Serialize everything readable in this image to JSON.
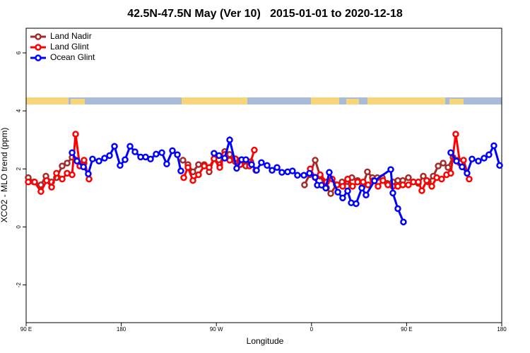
{
  "chart_data": {
    "type": "line",
    "title": "42.5N-47.5N May (Ver 10)   2015-01-01 to 2020-12-18",
    "x_label": "Longitude",
    "y_label": "XCO2 - MLO trend (ppm)",
    "xlim": [
      90,
      540
    ],
    "ylim": [
      -3.3,
      6.85
    ],
    "xticks": [
      {
        "value": 90,
        "label": "90 E"
      },
      180,
      {
        "value": 270,
        "label": "90 W"
      },
      {
        "value": 360,
        "label": "0"
      },
      {
        "value": 450,
        "label": "90 E"
      },
      {
        "value": 540,
        "label": "180"
      }
    ],
    "yticks": [
      -2,
      0,
      2,
      4,
      6
    ],
    "legend": "top-left",
    "series": [
      {
        "name": "Land Nadir",
        "color": "#a52a2a",
        "x": [
          92.0,
          97.4,
          104.0,
          108.7,
          114.1,
          118.7,
          124.1,
          128.8,
          133.5,
          137.5,
          144.8,
          190,
          238.4,
          243.1,
          247.8,
          253.1,
          258.5,
          263.2,
          267.8,
          273.2,
          277.9,
          282.6,
          287.9,
          292.6,
          297.9,
          302.6,
          307.3,
          330,
          353.4,
          358.1,
          363.5,
          368.2,
          374.2,
          378.2,
          383.5,
          388.9,
          393.5,
          398.2,
          403.6,
          408.3,
          412.9,
          417.6,
          422.3,
          427,
          431.7,
          437,
          441.7,
          446.4,
          451.7,
          456.4,
          461.1,
          465.8,
          470.5,
          475.2,
          479.9,
          484.6,
          489.2,
          493.9,
          498.6,
          503.3
        ],
        "values": [
          1.7,
          1.55,
          1.45,
          1.75,
          1.55,
          1.7,
          2.1,
          2.2,
          2.4,
          2.3,
          2.2,
          null,
          2.3,
          2.15,
          1.9,
          2.15,
          2.15,
          1.9,
          2.35,
          2.15,
          2.6,
          2.5,
          2.25,
          2.3,
          2.1,
          2.25,
          1.95,
          null,
          1.45,
          1.8,
          2.3,
          1.75,
          1.35,
          1.15,
          1.45,
          1.55,
          1.4,
          1.7,
          1.6,
          1.4,
          1.9,
          1.7,
          1.7,
          1.7,
          1.5,
          1.55,
          1.6,
          1.6,
          1.7,
          1.55,
          1.5,
          1.75,
          1.55,
          1.75,
          2.1,
          2.2,
          2.05,
          2.4,
          2.3,
          2.1
        ]
      },
      {
        "name": "Land Glint",
        "color": "#ff0000",
        "x": [
          92.0,
          98.0,
          104.0,
          109.4,
          114.1,
          118.7,
          124.1,
          128.8,
          133.5,
          136.8,
          140.8,
          144.8,
          149.5,
          195,
          239.1,
          243.1,
          247.8,
          253.1,
          258.5,
          263.2,
          267.8,
          273.2,
          277.9,
          282.6,
          287.9,
          292.6,
          297.9,
          301.3,
          305.9,
          330,
          358.8,
          363.5,
          368.2,
          374.2,
          379.6,
          384.2,
          389.5,
          394.2,
          398.9,
          403.6,
          408.9,
          413.6,
          418.3,
          423,
          427.6,
          432.3,
          437,
          441.7,
          446.4,
          451.7,
          456.4,
          461.1,
          464.4,
          469.1,
          473.8,
          478.5,
          483.1,
          487.8,
          491.8,
          496.5,
          500.5,
          503.9,
          509.2
        ],
        "values": [
          1.55,
          1.55,
          1.22,
          1.6,
          1.37,
          1.85,
          1.65,
          1.85,
          1.8,
          3.2,
          2.1,
          2.3,
          1.65,
          null,
          1.7,
          2.05,
          1.6,
          1.8,
          2.1,
          2.05,
          2.35,
          2.05,
          2.5,
          2.3,
          2.35,
          2.15,
          2.3,
          2.1,
          2.65,
          null,
          2.0,
          1.7,
          1.8,
          1.55,
          1.65,
          1.45,
          1.4,
          1.65,
          1.4,
          1.55,
          1.55,
          1.45,
          1.6,
          1.4,
          1.6,
          1.45,
          1.4,
          1.4,
          1.45,
          1.45,
          1.55,
          1.55,
          1.25,
          1.6,
          1.4,
          1.7,
          1.65,
          1.8,
          1.85,
          3.2,
          2.2,
          2.3,
          1.65
        ]
      },
      {
        "name": "Ocean Glint",
        "color": "#0000ff",
        "x": [
          133.5,
          138.1,
          144.2,
          148.8,
          152.8,
          158.9,
          164.2,
          168.9,
          173.6,
          178.9,
          183.6,
          188.3,
          193,
          198.3,
          203,
          207.7,
          213,
          218.4,
          223,
          228.4,
          233.1,
          236.4,
          252,
          267.8,
          272.5,
          277.9,
          282.6,
          289.2,
          293.9,
          297.9,
          303.3,
          308,
          312.6,
          318,
          322.7,
          327.4,
          332,
          337.4,
          342,
          346.7,
          352.8,
          358.1,
          363.5,
          365.5,
          369.5,
          373.5,
          376.8,
          384.9,
          389.5,
          394.2,
          397.6,
          402.2,
          407.6,
          411.6,
          419.6,
          435,
          437,
          441.7,
          447,
          470,
          491.8,
          497.2,
          502.5,
          507.2,
          511.9,
          517.9,
          523.3,
          527.9,
          532.6,
          538
        ],
        "values": [
          2.56,
          2.27,
          2.07,
          1.83,
          2.34,
          2.27,
          2.37,
          2.46,
          2.78,
          2.12,
          2.32,
          2.78,
          2.59,
          2.41,
          2.41,
          2.34,
          2.51,
          2.56,
          2.17,
          2.63,
          2.49,
          1.93,
          null,
          2.54,
          2.46,
          2.37,
          3.0,
          2.02,
          2.32,
          2.32,
          2.15,
          1.95,
          2.22,
          2.12,
          1.95,
          2.05,
          1.88,
          1.9,
          1.93,
          1.78,
          1.78,
          1.85,
          1.71,
          1.44,
          1.44,
          1.34,
          1.88,
          1.2,
          1.0,
          1.24,
          0.83,
          0.8,
          1.34,
          1.1,
          1.59,
          1.98,
          1.17,
          0.63,
          0.17,
          null,
          2.56,
          2.27,
          2.07,
          1.85,
          2.34,
          2.27,
          2.37,
          2.49,
          2.8,
          2.12
        ]
      }
    ]
  }
}
